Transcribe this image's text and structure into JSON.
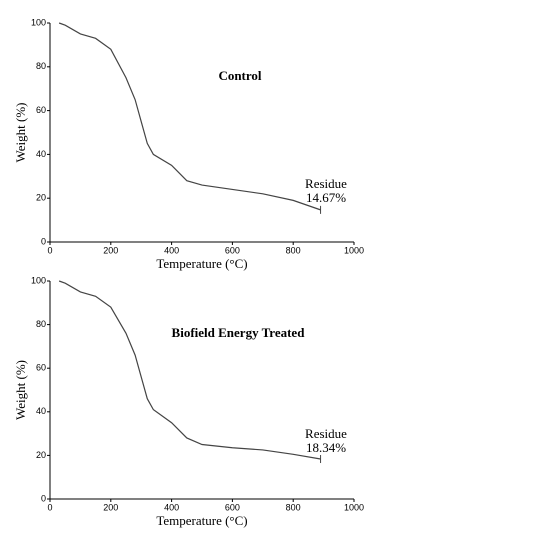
{
  "chart_data": [
    {
      "type": "line",
      "label": "Control",
      "annotation": [
        "Residue",
        "14.67%"
      ],
      "xlabel": "Temperature (°C)",
      "ylabel": "Weight (%)",
      "x": [
        30,
        50,
        100,
        150,
        200,
        250,
        280,
        300,
        320,
        340,
        400,
        450,
        500,
        600,
        700,
        800,
        890
      ],
      "series": [
        {
          "color": "#444444",
          "values": [
            100,
            99,
            95,
            93,
            88,
            75,
            65,
            55,
            45,
            40,
            35,
            28,
            26,
            24,
            22,
            19,
            14.67
          ]
        }
      ],
      "xlim": [
        0,
        1000
      ],
      "xticks": [
        0,
        200,
        400,
        600,
        800,
        1000
      ],
      "ylim": [
        0,
        100
      ],
      "yticks": [
        0,
        20,
        40,
        60,
        80,
        100
      ]
    },
    {
      "type": "line",
      "label": "Biofield Energy Treated",
      "annotation": [
        "Residue",
        "18.34%"
      ],
      "xlabel": "Temperature (°C)",
      "ylabel": "Weight (%)",
      "x": [
        30,
        50,
        100,
        150,
        200,
        250,
        280,
        300,
        320,
        340,
        400,
        450,
        500,
        600,
        700,
        800,
        890
      ],
      "series": [
        {
          "color": "#444444",
          "values": [
            100,
            99,
            95,
            93,
            88,
            76,
            66,
            56,
            46,
            41,
            35,
            28,
            25,
            23.5,
            22.5,
            20.5,
            18.34
          ]
        }
      ],
      "xlim": [
        0,
        1000
      ],
      "xticks": [
        0,
        200,
        400,
        600,
        800,
        1000
      ],
      "ylim": [
        0,
        100
      ],
      "yticks": [
        0,
        20,
        40,
        60,
        80,
        100
      ]
    }
  ]
}
